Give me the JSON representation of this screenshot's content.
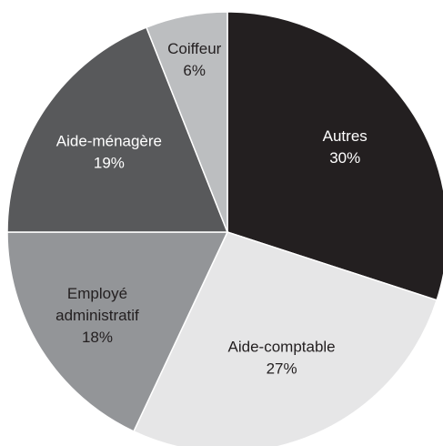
{
  "chart_data": {
    "type": "pie",
    "start": "12 o'clock",
    "direction": "clockwise",
    "slices": [
      {
        "label": "Autres",
        "value": 30,
        "display": "30%",
        "color": "#231f20",
        "text_color": "#ffffff"
      },
      {
        "label": "Aide-comptable",
        "value": 27,
        "display": "27%",
        "color": "#e6e6e7",
        "text_color": "#231f20"
      },
      {
        "label": "Employé administratif",
        "label_lines": [
          "Employé",
          "administratif"
        ],
        "value": 18,
        "display": "18%",
        "color": "#939598",
        "text_color": "#231f20"
      },
      {
        "label": "Aide-ménagère",
        "value": 19,
        "display": "19%",
        "color": "#58595b",
        "text_color": "#ffffff"
      },
      {
        "label": "Coiffeur",
        "value": 6,
        "display": "6%",
        "color": "#bcbec0",
        "text_color": "#231f20"
      }
    ]
  }
}
